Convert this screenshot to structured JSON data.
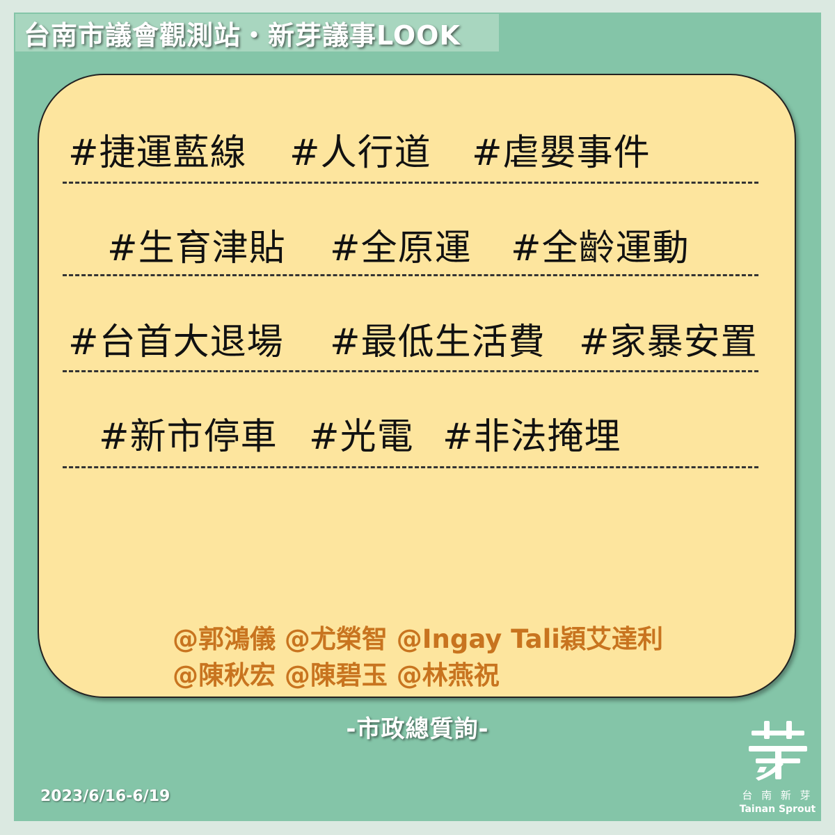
{
  "header": {
    "title": "台南市議會觀測站・新芽議事LOOK"
  },
  "tags": [
    [
      "#捷運藍線",
      "#人行道",
      "#虐嬰事件"
    ],
    [
      "#生育津貼",
      "#全原運",
      "#全齡運動"
    ],
    [
      "#台首大退場",
      "#最低生活費",
      "#家暴安置"
    ],
    [
      "#新市停車",
      "#光電",
      "#非法掩埋"
    ]
  ],
  "mentions": {
    "line1": "@郭鴻儀 @尤榮智 @Ingay Tali穎艾達利",
    "line2": "@陳秋宏 @陳碧玉 @林燕祝"
  },
  "footer": {
    "label": "-市政總質詢-",
    "date": "2023/6/16-6/19"
  },
  "logo": {
    "icon": "sprout-logo-icon",
    "name_zh": "台 南 新 芽",
    "name_en": "Tainan Sprout"
  },
  "colors": {
    "frame": "#84c5a8",
    "card": "#fde59e",
    "mentions": "#c8741f"
  }
}
